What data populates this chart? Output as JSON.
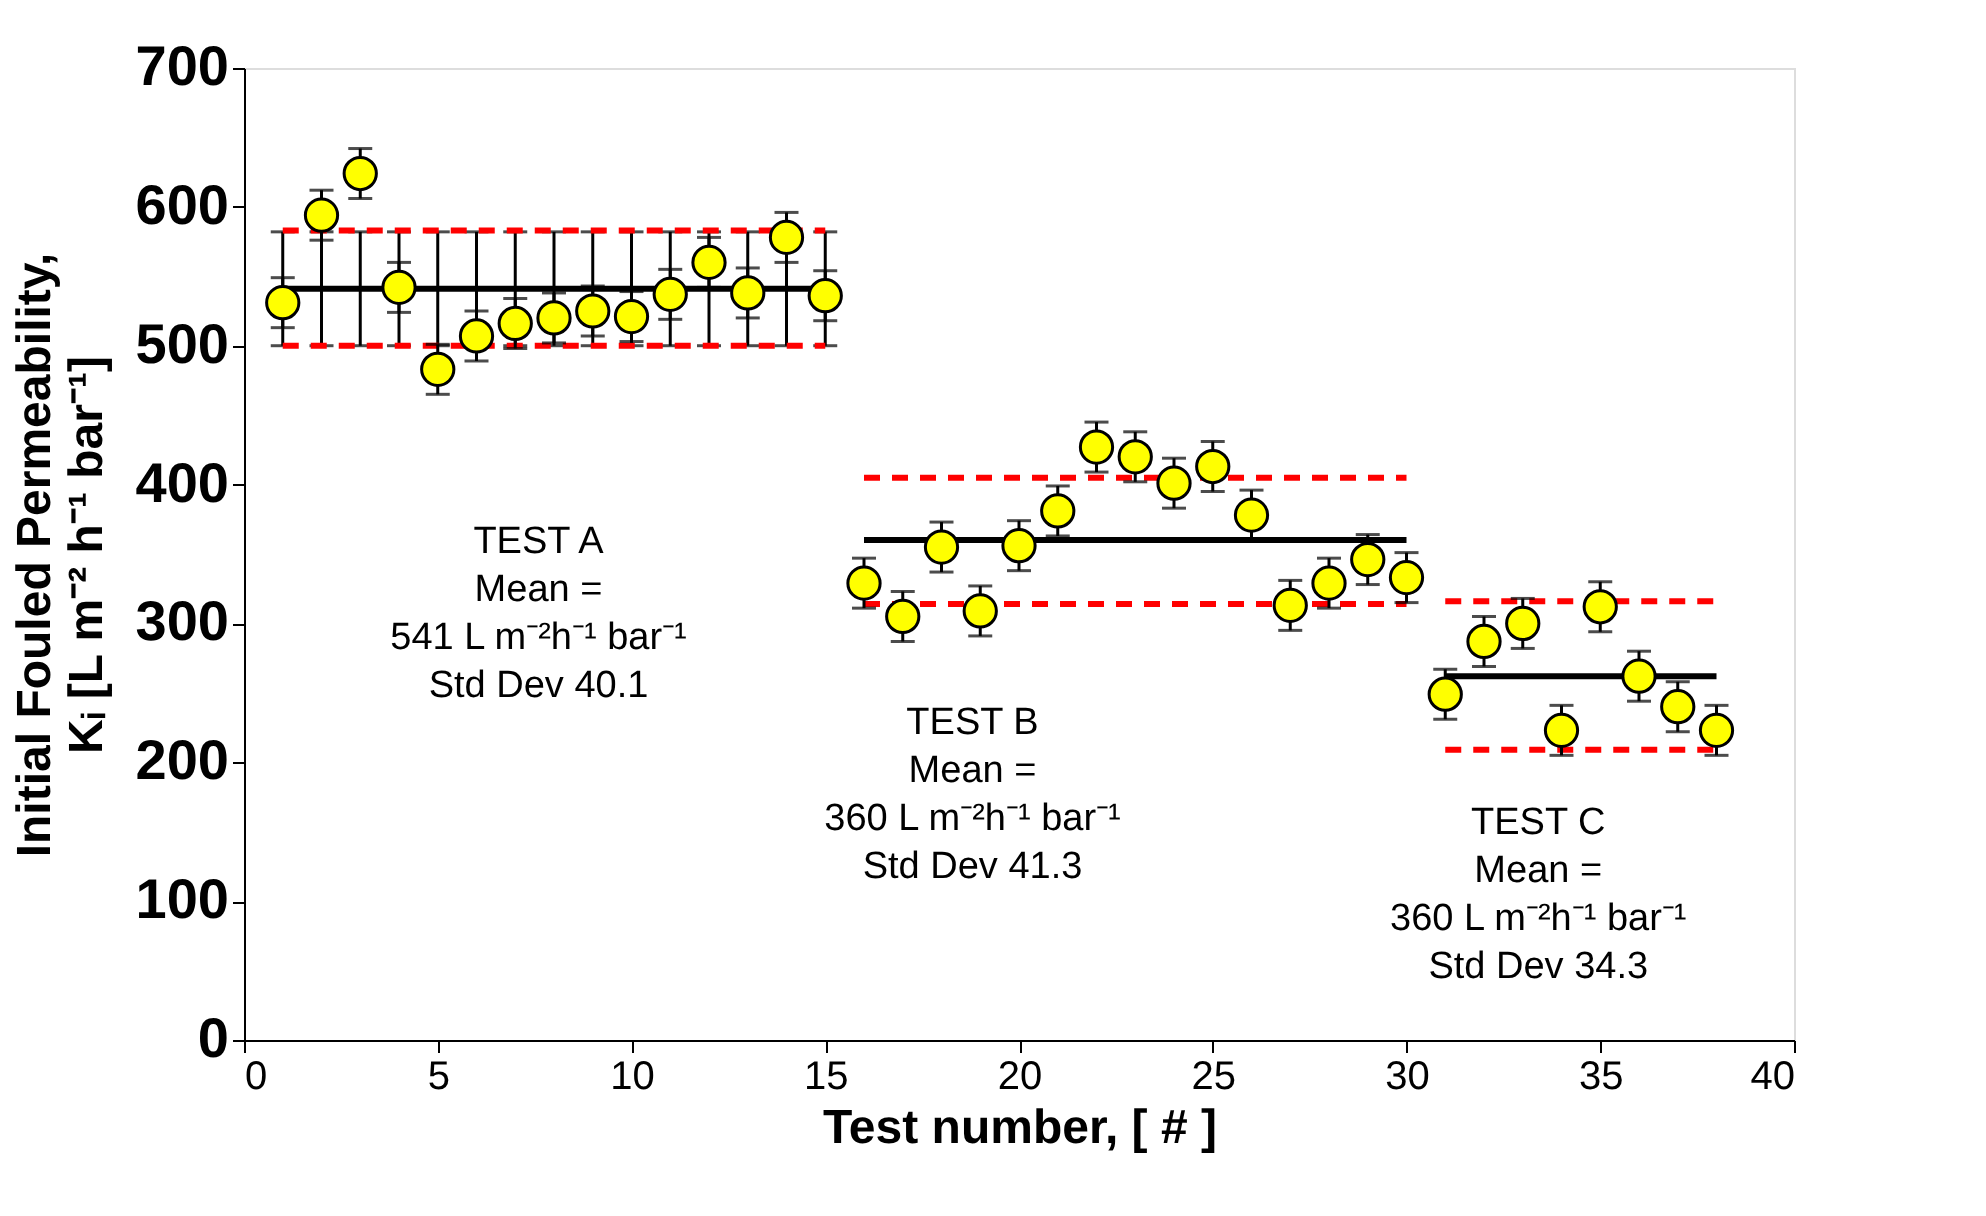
{
  "chart_data": {
    "type": "scatter",
    "xlabel": "Test number,  [ # ]",
    "ylabel": "Initial Fouled Permeability,\nKᵢ [L m⁻² h⁻¹ bar⁻¹]",
    "xlim": [
      0,
      40
    ],
    "xticks": [
      0,
      5,
      10,
      15,
      20,
      25,
      30,
      35,
      40
    ],
    "ylim": [
      0,
      700
    ],
    "yticks": [
      0,
      100,
      200,
      300,
      400,
      500,
      600,
      700
    ],
    "grid": false,
    "series": [
      {
        "type": "line",
        "color": "#000000",
        "line_style": "solid",
        "x": [
          1,
          2,
          3,
          4,
          5,
          6,
          7,
          8,
          9,
          10,
          11,
          12,
          13,
          14,
          15
        ],
        "values": [
          541,
          541,
          541,
          541,
          541,
          541,
          541,
          541,
          541,
          541,
          541,
          541,
          541,
          541,
          541
        ],
        "errors": [
          41,
          41,
          41,
          41,
          41,
          41,
          41,
          41,
          41,
          41,
          41,
          41,
          41,
          41,
          41
        ]
      },
      {
        "type": "line",
        "color": "#ff0000",
        "line_style": "dashed",
        "x": [
          1,
          15
        ],
        "values": [
          583,
          583
        ]
      },
      {
        "type": "line",
        "color": "#ff0000",
        "line_style": "dashed",
        "x": [
          1,
          15
        ],
        "values": [
          500,
          500
        ]
      },
      {
        "type": "line",
        "color": "#000000",
        "line_style": "solid",
        "x": [
          16,
          30
        ],
        "values": [
          360,
          360
        ]
      },
      {
        "type": "line",
        "color": "#ff0000",
        "line_style": "dashed",
        "x": [
          16,
          30
        ],
        "values": [
          405,
          405
        ]
      },
      {
        "type": "line",
        "color": "#ff0000",
        "line_style": "dashed",
        "x": [
          16,
          30
        ],
        "values": [
          314,
          314
        ]
      },
      {
        "type": "line",
        "color": "#000000",
        "line_style": "solid",
        "x": [
          31,
          38
        ],
        "values": [
          262,
          262
        ]
      },
      {
        "type": "line",
        "color": "#ff0000",
        "line_style": "dashed",
        "x": [
          31,
          38
        ],
        "values": [
          316,
          316
        ]
      },
      {
        "type": "line",
        "color": "#ff0000",
        "line_style": "dashed",
        "x": [
          31,
          38
        ],
        "values": [
          209,
          209
        ]
      },
      {
        "color": "#ffff00",
        "marker": "circle",
        "x": [
          1,
          2,
          3,
          4,
          5,
          6,
          7,
          8,
          9,
          10,
          11,
          12,
          13,
          14,
          15,
          16,
          17,
          18,
          19,
          20,
          21,
          22,
          23,
          24,
          25,
          26,
          27,
          28,
          29,
          30,
          31,
          32,
          33,
          34,
          35,
          36,
          37,
          38
        ],
        "values": [
          531,
          594,
          624,
          542,
          483,
          507,
          516,
          520,
          525,
          521,
          537,
          560,
          538,
          578,
          536,
          329,
          305,
          355,
          309,
          356,
          381,
          427,
          420,
          401,
          413,
          378,
          313,
          329,
          346,
          333,
          249,
          287,
          300,
          223,
          312,
          262,
          240,
          223
        ],
        "errors": [
          18,
          18,
          18,
          18,
          18,
          18,
          18,
          18,
          18,
          18,
          18,
          18,
          18,
          18,
          18,
          18,
          18,
          18,
          18,
          18,
          18,
          18,
          18,
          18,
          18,
          18,
          18,
          18,
          18,
          18,
          18,
          18,
          18,
          18,
          18,
          18,
          18,
          18
        ]
      }
    ],
    "annotations": [
      "TEST A\nMean =\n541 L m⁻²h⁻¹ bar⁻¹\nStd Dev 40.1",
      "TEST B\nMean =\n360 L m⁻²h⁻¹ bar⁻¹\nStd Dev 41.3",
      "TEST C\nMean =\n360 L m⁻²h⁻¹ bar⁻¹\nStd Dev 34.3"
    ]
  }
}
